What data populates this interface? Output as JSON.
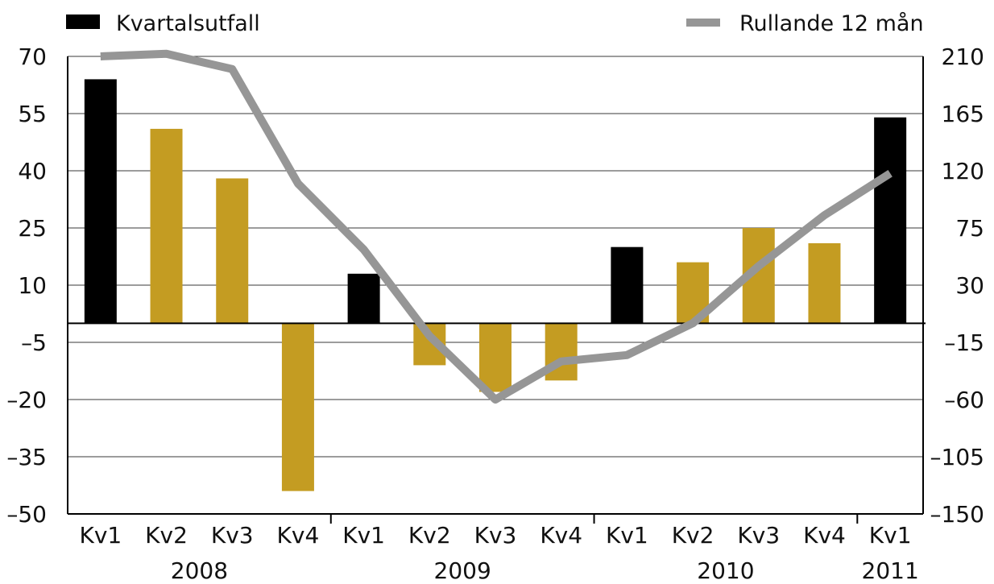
{
  "chart_data": {
    "type": "bar",
    "categories": [
      "Kv1",
      "Kv2",
      "Kv3",
      "Kv4",
      "Kv1",
      "Kv2",
      "Kv3",
      "Kv4",
      "Kv1",
      "Kv2",
      "Kv3",
      "Kv4",
      "Kv1"
    ],
    "years": [
      {
        "label": "2008",
        "start": 0,
        "end": 3
      },
      {
        "label": "2009",
        "start": 4,
        "end": 7
      },
      {
        "label": "2010",
        "start": 8,
        "end": 11
      },
      {
        "label": "2011",
        "start": 12,
        "end": 12
      }
    ],
    "series": [
      {
        "name": "Kvartalsutfall",
        "type": "bar",
        "axis": "left",
        "values": [
          64,
          51,
          38,
          -44,
          13,
          -11,
          -18,
          -15,
          20,
          16,
          25,
          21,
          54
        ],
        "colors": [
          "#000000",
          "#C49C22",
          "#C49C22",
          "#C49C22",
          "#000000",
          "#C49C22",
          "#C49C22",
          "#C49C22",
          "#000000",
          "#C49C22",
          "#C49C22",
          "#C49C22",
          "#000000"
        ]
      },
      {
        "name": "Rullande 12 mån",
        "type": "line",
        "axis": "right",
        "color": "#969696",
        "values": [
          210,
          212,
          200,
          110,
          58,
          -10,
          -60,
          -30,
          -25,
          0,
          45,
          85,
          118
        ]
      }
    ],
    "y_left": {
      "ticks": [
        70,
        55,
        40,
        25,
        10,
        -5,
        -20,
        -35,
        -50
      ],
      "tick_labels": [
        "70",
        "55",
        "40",
        "25",
        "10",
        "–5",
        "–20",
        "–35",
        "–50"
      ],
      "ylim": [
        -50,
        70
      ]
    },
    "y_right": {
      "ticks": [
        210,
        165,
        120,
        75,
        30,
        -15,
        -60,
        -105,
        -150
      ],
      "tick_labels": [
        "210",
        "165",
        "120",
        "75",
        "30",
        "–15",
        "–60",
        "–105",
        "–150"
      ],
      "ylim": [
        -150,
        210
      ]
    },
    "grid": true,
    "legend_position": "top",
    "title": "",
    "xlabel": "",
    "ylabel": ""
  }
}
